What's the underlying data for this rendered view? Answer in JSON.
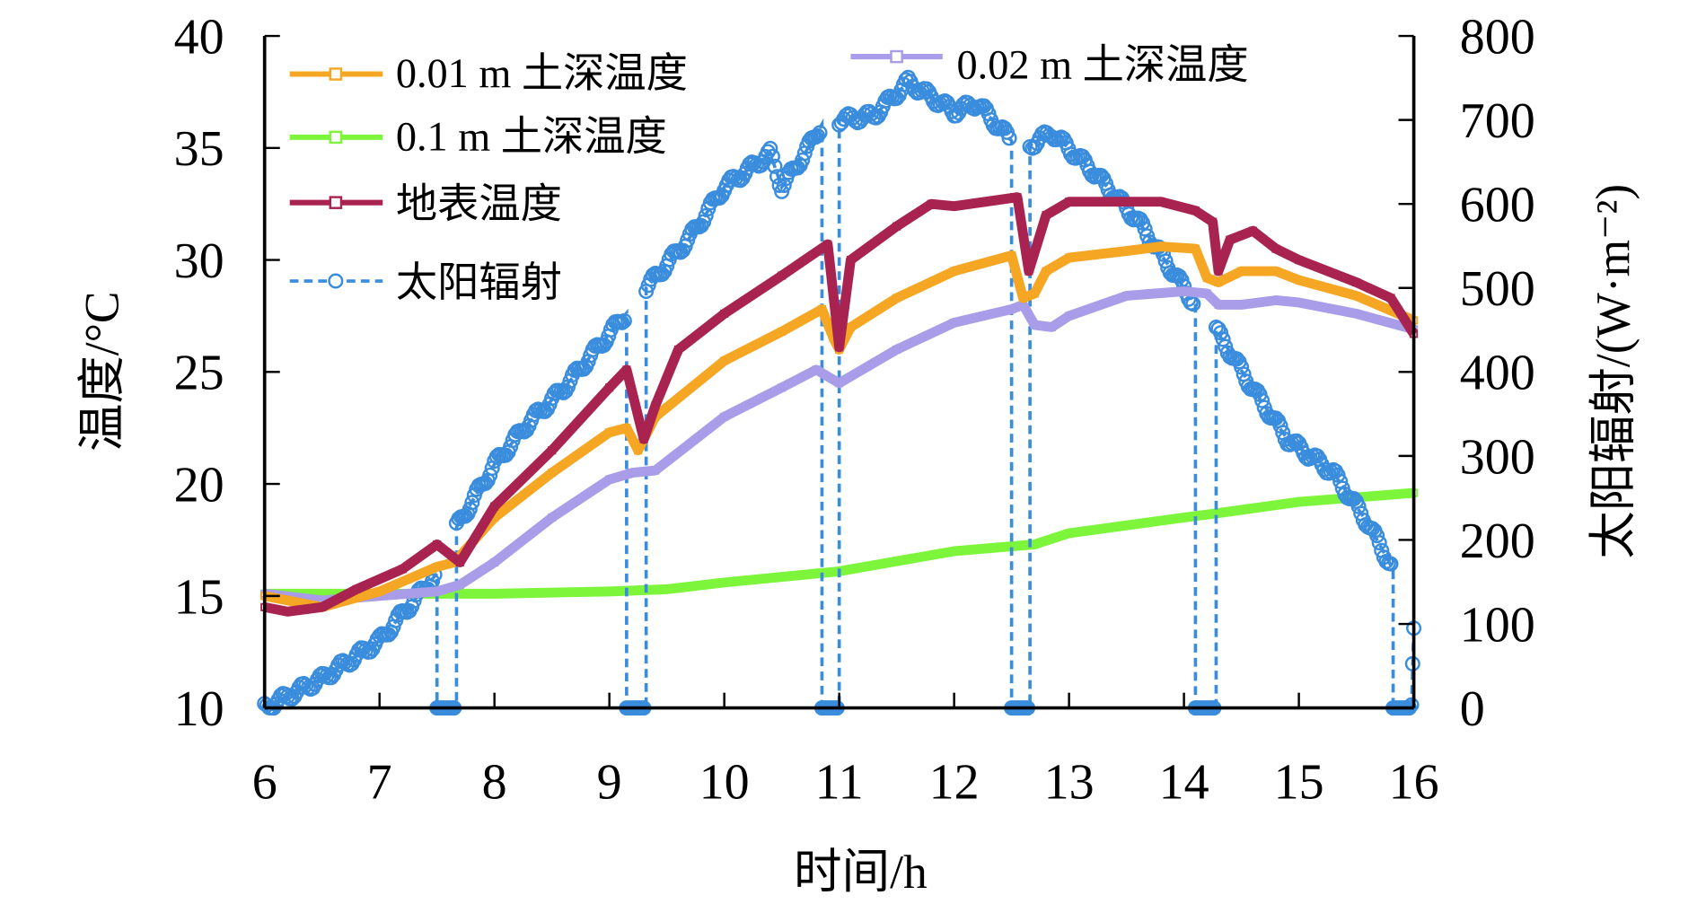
{
  "chart_data": {
    "type": "line",
    "xlabel": "时间/h",
    "ylabel_left": "温度/°C",
    "ylabel_right": "太阳辐射/(W·m⁻²)",
    "xlim": [
      6,
      16
    ],
    "ylim_left": [
      10,
      40
    ],
    "ylim_right": [
      0,
      800
    ],
    "x_ticks": [
      "6",
      "7",
      "8",
      "9",
      "10",
      "11",
      "12",
      "13",
      "14",
      "15",
      "16"
    ],
    "y_left_ticks": [
      "10",
      "15",
      "20",
      "25",
      "30",
      "35",
      "40"
    ],
    "y_right_ticks": [
      "0",
      "100",
      "200",
      "300",
      "400",
      "500",
      "600",
      "700",
      "800"
    ],
    "grid": false,
    "legend_position": "top-left",
    "series": [
      {
        "name": "0.01 m 土深温度",
        "axis": "left",
        "color": "#F5A623",
        "marker": "square",
        "points": [
          [
            6,
            15
          ],
          [
            6.5,
            14.5
          ],
          [
            7,
            15.2
          ],
          [
            7.5,
            16.3
          ],
          [
            7.65,
            16.5
          ],
          [
            8,
            18.5
          ],
          [
            8.5,
            20.5
          ],
          [
            9,
            22.3
          ],
          [
            9.15,
            22.5
          ],
          [
            9.25,
            21.5
          ],
          [
            9.4,
            23
          ],
          [
            10,
            25.5
          ],
          [
            10.5,
            26.8
          ],
          [
            10.85,
            27.8
          ],
          [
            10.95,
            26.5
          ],
          [
            11,
            26
          ],
          [
            11.1,
            27
          ],
          [
            11.5,
            28.3
          ],
          [
            12,
            29.5
          ],
          [
            12.5,
            30.2
          ],
          [
            12.6,
            28.3
          ],
          [
            12.7,
            28.5
          ],
          [
            12.8,
            29.5
          ],
          [
            13,
            30.1
          ],
          [
            13.5,
            30.4
          ],
          [
            13.8,
            30.6
          ],
          [
            14.1,
            30.5
          ],
          [
            14.2,
            29.2
          ],
          [
            14.3,
            29
          ],
          [
            14.5,
            29.5
          ],
          [
            14.8,
            29.5
          ],
          [
            15,
            29.1
          ],
          [
            15.5,
            28.4
          ],
          [
            16,
            27.3
          ]
        ]
      },
      {
        "name": "0.02 m 土深温度",
        "axis": "left",
        "color": "#A99CE8",
        "marker": "square",
        "points": [
          [
            6,
            15.1
          ],
          [
            6.5,
            14.8
          ],
          [
            7,
            15
          ],
          [
            7.5,
            15.2
          ],
          [
            7.7,
            15.5
          ],
          [
            8,
            16.5
          ],
          [
            8.5,
            18.5
          ],
          [
            9,
            20.2
          ],
          [
            9.2,
            20.5
          ],
          [
            9.4,
            20.6
          ],
          [
            10,
            23
          ],
          [
            10.5,
            24.3
          ],
          [
            10.8,
            25.1
          ],
          [
            11,
            24.5
          ],
          [
            11.5,
            26
          ],
          [
            12,
            27.2
          ],
          [
            12.5,
            27.8
          ],
          [
            12.6,
            28
          ],
          [
            12.7,
            27.1
          ],
          [
            12.85,
            27
          ],
          [
            13,
            27.5
          ],
          [
            13.5,
            28.4
          ],
          [
            14,
            28.6
          ],
          [
            14.2,
            28.5
          ],
          [
            14.3,
            28
          ],
          [
            14.5,
            28
          ],
          [
            14.8,
            28.2
          ],
          [
            15,
            28.1
          ],
          [
            15.5,
            27.6
          ],
          [
            16,
            26.9
          ]
        ]
      },
      {
        "name": "0.1 m 土深温度",
        "axis": "left",
        "color": "#7CF53A",
        "marker": "square",
        "points": [
          [
            6,
            15.1
          ],
          [
            7,
            15.1
          ],
          [
            8,
            15.1
          ],
          [
            9,
            15.2
          ],
          [
            9.5,
            15.3
          ],
          [
            10,
            15.6
          ],
          [
            11,
            16.1
          ],
          [
            12,
            17
          ],
          [
            12.7,
            17.3
          ],
          [
            13,
            17.8
          ],
          [
            14,
            18.5
          ],
          [
            14.3,
            18.7
          ],
          [
            15,
            19.2
          ],
          [
            16,
            19.6
          ]
        ]
      },
      {
        "name": "地表温度",
        "axis": "left",
        "color": "#A8234F",
        "marker": "square",
        "points": [
          [
            6,
            14.5
          ],
          [
            6.2,
            14.3
          ],
          [
            6.5,
            14.5
          ],
          [
            6.8,
            15.3
          ],
          [
            7.2,
            16.2
          ],
          [
            7.5,
            17.3
          ],
          [
            7.7,
            16.5
          ],
          [
            8,
            19
          ],
          [
            8.5,
            21.5
          ],
          [
            9,
            24.3
          ],
          [
            9.15,
            25.1
          ],
          [
            9.3,
            22
          ],
          [
            9.4,
            23.5
          ],
          [
            9.6,
            26
          ],
          [
            10,
            27.6
          ],
          [
            10.5,
            29.3
          ],
          [
            10.9,
            30.7
          ],
          [
            11,
            26.1
          ],
          [
            11.1,
            30
          ],
          [
            11.5,
            31.5
          ],
          [
            11.8,
            32.5
          ],
          [
            12,
            32.4
          ],
          [
            12.55,
            32.8
          ],
          [
            12.65,
            29.5
          ],
          [
            12.8,
            32
          ],
          [
            13,
            32.6
          ],
          [
            13.8,
            32.6
          ],
          [
            14.1,
            32.2
          ],
          [
            14.25,
            31.7
          ],
          [
            14.3,
            29.5
          ],
          [
            14.4,
            30.9
          ],
          [
            14.6,
            31.3
          ],
          [
            14.8,
            30.5
          ],
          [
            15,
            30
          ],
          [
            15.5,
            29
          ],
          [
            15.8,
            28.3
          ],
          [
            16,
            26.7
          ]
        ]
      },
      {
        "name": "太阳辐射",
        "axis": "right",
        "color": "#3A8CDD",
        "marker": "circle",
        "points": [
          [
            6,
            0
          ],
          [
            6.5,
            35
          ],
          [
            7,
            80
          ],
          [
            7.5,
            160
          ],
          [
            7.5,
            0
          ],
          [
            7.67,
            0
          ],
          [
            7.67,
            215
          ],
          [
            8,
            290
          ],
          [
            8.3,
            340
          ],
          [
            8.6,
            380
          ],
          [
            9.15,
            470
          ],
          [
            9.15,
            0
          ],
          [
            9.32,
            0
          ],
          [
            9.32,
            500
          ],
          [
            9.7,
            560
          ],
          [
            10,
            620
          ],
          [
            10.4,
            660
          ],
          [
            10.5,
            620
          ],
          [
            10.7,
            660
          ],
          [
            10.85,
            695
          ],
          [
            10.85,
            0
          ],
          [
            11,
            0
          ],
          [
            11,
            700
          ],
          [
            11.3,
            705
          ],
          [
            11.6,
            745
          ],
          [
            12,
            710
          ],
          [
            12.2,
            720
          ],
          [
            12.5,
            675
          ],
          [
            12.5,
            0
          ],
          [
            12.66,
            0
          ],
          [
            12.66,
            670
          ],
          [
            12.85,
            685
          ],
          [
            13.2,
            640
          ],
          [
            13.6,
            580
          ],
          [
            14.1,
            480
          ],
          [
            14.1,
            0
          ],
          [
            14.28,
            0
          ],
          [
            14.28,
            450
          ],
          [
            14.6,
            380
          ],
          [
            14.9,
            320
          ],
          [
            15.3,
            280
          ],
          [
            15.6,
            220
          ],
          [
            15.82,
            165
          ],
          [
            15.82,
            0
          ],
          [
            15.98,
            0
          ],
          [
            16,
            95
          ]
        ]
      }
    ]
  }
}
